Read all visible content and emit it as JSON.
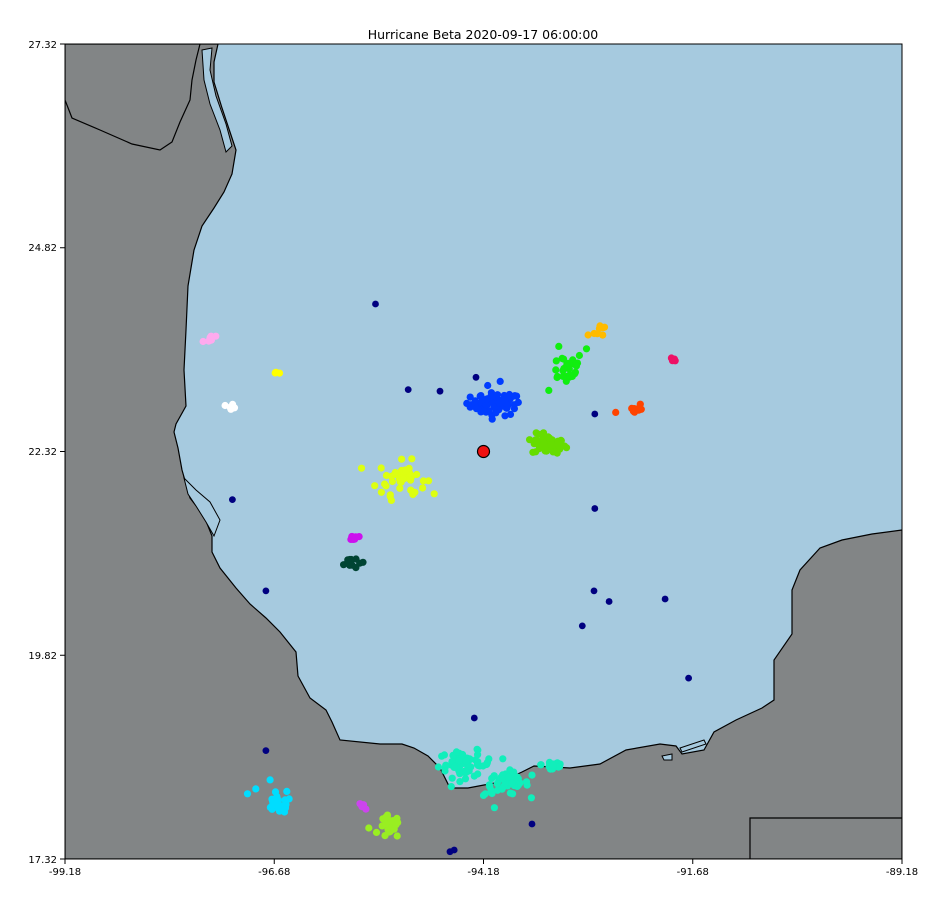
{
  "chart_data": {
    "type": "scatter",
    "title": "Hurricane Beta 2020-09-17 06:00:00",
    "xlabel": "",
    "ylabel": "",
    "xlim": [
      -99.18,
      -89.18
    ],
    "ylim": [
      17.32,
      27.32
    ],
    "x_ticks": [
      "-99.18",
      "-96.68",
      "-94.18",
      "-91.68",
      "-89.18"
    ],
    "y_ticks": [
      "17.32",
      "19.82",
      "22.32",
      "24.82",
      "27.32"
    ],
    "grid": false,
    "legend": "none",
    "background_colors": {
      "ocean": "#a6cadf",
      "land": "#828586",
      "coast": "#000000"
    },
    "storm_center": {
      "x": -94.18,
      "y": 22.32,
      "color": "#ee1111"
    },
    "isolated_points": {
      "color": "#000080",
      "points": [
        [
          -95.47,
          24.13
        ],
        [
          -95.08,
          23.08
        ],
        [
          -94.7,
          23.06
        ],
        [
          -94.27,
          23.23
        ],
        [
          -92.85,
          22.78
        ],
        [
          -97.18,
          21.73
        ],
        [
          -92.85,
          21.62
        ],
        [
          -92.86,
          20.61
        ],
        [
          -92.68,
          20.48
        ],
        [
          -92.01,
          20.51
        ],
        [
          -93.0,
          20.18
        ],
        [
          -91.73,
          19.54
        ],
        [
          -94.29,
          19.05
        ],
        [
          -96.78,
          18.65
        ],
        [
          -93.6,
          17.75
        ],
        [
          -94.53,
          17.43
        ],
        [
          -94.58,
          17.41
        ],
        [
          -96.78,
          20.61
        ]
      ]
    },
    "clusters": [
      {
        "color": "#003cff",
        "cx": -94.03,
        "cy": 22.9,
        "sx": 0.15,
        "sy": 0.07,
        "n": 70,
        "extra": [
          [
            -94.22,
            23.0
          ],
          [
            -93.98,
            23.18
          ],
          [
            -93.87,
            23.02
          ],
          [
            -94.38,
            22.91
          ],
          [
            -94.13,
            23.13
          ]
        ]
      },
      {
        "color": "#66dd00",
        "cx": -93.4,
        "cy": 22.4,
        "sx": 0.1,
        "sy": 0.06,
        "n": 55,
        "extra": [
          [
            -93.55,
            22.55
          ],
          [
            -93.3,
            22.3
          ]
        ]
      },
      {
        "color": "#11ee11",
        "cx": -93.2,
        "cy": 23.35,
        "sx": 0.11,
        "sy": 0.1,
        "n": 28,
        "extra": [
          [
            -92.95,
            23.58
          ],
          [
            -93.4,
            23.07
          ],
          [
            -93.28,
            23.61
          ]
        ]
      },
      {
        "color": "#ffbb00",
        "cx": -92.75,
        "cy": 23.81,
        "sx": 0.05,
        "sy": 0.05,
        "n": 7,
        "extra": [
          [
            -92.93,
            23.75
          ]
        ]
      },
      {
        "color": "#ee1166",
        "cx": -91.9,
        "cy": 23.46,
        "sx": 0.02,
        "sy": 0.02,
        "n": 4,
        "extra": []
      },
      {
        "color": "#ff4400",
        "cx": -92.38,
        "cy": 22.84,
        "sx": 0.05,
        "sy": 0.04,
        "n": 9,
        "extra": [
          [
            -92.6,
            22.8
          ]
        ]
      },
      {
        "color": "#ddff11",
        "cx": -95.15,
        "cy": 22.0,
        "sx": 0.14,
        "sy": 0.1,
        "n": 38,
        "extra": [
          [
            -95.48,
            21.9
          ],
          [
            -95.4,
            21.82
          ],
          [
            -95.28,
            21.72
          ],
          [
            -95.0,
            21.82
          ]
        ]
      },
      {
        "color": "#cc11ee",
        "cx": -95.75,
        "cy": 21.26,
        "sx": 0.04,
        "sy": 0.02,
        "n": 8,
        "extra": []
      },
      {
        "color": "#004433",
        "cx": -95.77,
        "cy": 20.96,
        "sx": 0.04,
        "sy": 0.04,
        "n": 14,
        "extra": [
          [
            -95.62,
            20.96
          ]
        ]
      },
      {
        "color": "#ffaaee",
        "cx": -97.44,
        "cy": 23.7,
        "sx": 0.03,
        "sy": 0.02,
        "n": 5,
        "extra": [
          [
            -97.53,
            23.67
          ]
        ]
      },
      {
        "color": "#ffff00",
        "cx": -96.64,
        "cy": 23.3,
        "sx": 0.02,
        "sy": 0.02,
        "n": 4,
        "extra": []
      },
      {
        "color": "#ffffff",
        "cx": -97.18,
        "cy": 22.88,
        "sx": 0.03,
        "sy": 0.02,
        "n": 5,
        "extra": []
      },
      {
        "color": "#11eebb",
        "cx": -94.4,
        "cy": 18.48,
        "sx": 0.16,
        "sy": 0.08,
        "n": 55,
        "extra": [
          [
            -94.64,
            18.4
          ],
          [
            -93.95,
            18.55
          ],
          [
            -94.25,
            18.6
          ]
        ]
      },
      {
        "color": "#11eebb",
        "cx": -93.9,
        "cy": 18.25,
        "sx": 0.13,
        "sy": 0.07,
        "n": 45,
        "extra": [
          [
            -93.6,
            18.35
          ],
          [
            -94.18,
            18.1
          ],
          [
            -94.05,
            17.95
          ]
        ]
      },
      {
        "color": "#11eebb",
        "cx": -93.35,
        "cy": 18.48,
        "sx": 0.07,
        "sy": 0.05,
        "n": 16,
        "extra": []
      },
      {
        "color": "#00ddff",
        "cx": -96.63,
        "cy": 17.98,
        "sx": 0.08,
        "sy": 0.05,
        "n": 26,
        "extra": [
          [
            -96.9,
            18.18
          ],
          [
            -96.53,
            18.15
          ],
          [
            -96.73,
            18.29
          ],
          [
            -97.0,
            18.12
          ]
        ]
      },
      {
        "color": "#99ee22",
        "cx": -95.3,
        "cy": 17.71,
        "sx": 0.06,
        "sy": 0.07,
        "n": 30,
        "extra": [
          [
            -95.55,
            17.7
          ]
        ]
      },
      {
        "color": "#cc44ee",
        "cx": -95.61,
        "cy": 17.98,
        "sx": 0.03,
        "sy": 0.05,
        "n": 4,
        "extra": []
      }
    ]
  }
}
